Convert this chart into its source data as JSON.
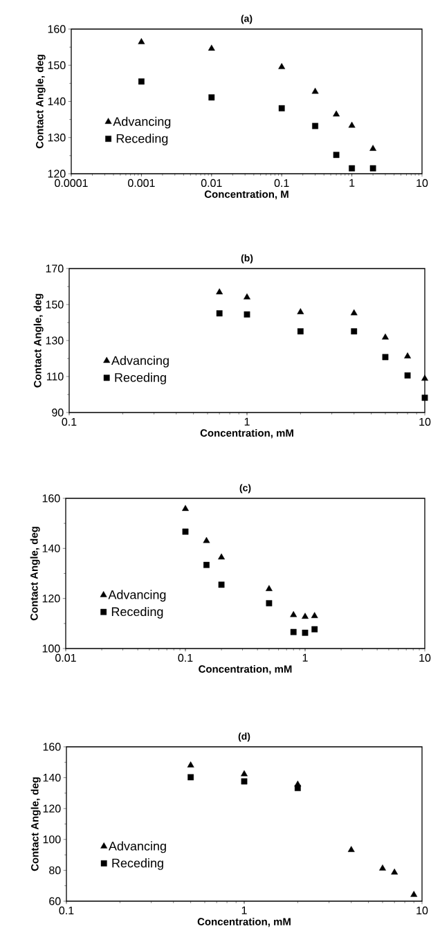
{
  "chart_data": [
    {
      "type": "scatter",
      "title": "(a)",
      "xlabel": "Concentration, M",
      "ylabel": "Contact Angle, deg",
      "log": "x",
      "legend": "left",
      "grid": false,
      "xlim": [
        0.0001,
        10
      ],
      "xticks": [
        0.0001,
        0.001,
        0.01,
        0.1,
        1,
        10
      ],
      "ylim": [
        120,
        160
      ],
      "yticks": [
        120,
        130,
        140,
        150,
        160
      ],
      "x": [
        0.001,
        0.01,
        0.1,
        0.3,
        0.6,
        1,
        2
      ],
      "series": [
        {
          "name": "Advancing",
          "color": "#000000",
          "marker": "triangle",
          "values": [
            156.4,
            154.6,
            149.5,
            142.7,
            136.4,
            133.3,
            126.9
          ]
        },
        {
          "name": "Receding",
          "color": "#000000",
          "marker": "square",
          "values": [
            145.5,
            141.1,
            138.1,
            133.2,
            125.2,
            121.5,
            121.5
          ]
        }
      ]
    },
    {
      "type": "scatter",
      "title": "(b)",
      "xlabel": "Concentration, mM",
      "ylabel": "Contact Angle, deg",
      "log": "x",
      "legend": "left",
      "grid": false,
      "xlim": [
        0.1,
        10
      ],
      "xticks": [
        0.1,
        1,
        10
      ],
      "ylim": [
        90,
        170
      ],
      "yticks": [
        90,
        110,
        130,
        150,
        170
      ],
      "x": [
        0.7,
        1,
        2,
        4,
        6,
        8,
        10
      ],
      "series": [
        {
          "name": "Advancing",
          "color": "#000000",
          "marker": "triangle",
          "values": [
            156.8,
            154.0,
            145.8,
            145.2,
            131.7,
            121.2,
            108.8
          ]
        },
        {
          "name": "Receding",
          "color": "#000000",
          "marker": "square",
          "values": [
            145.1,
            144.5,
            135.1,
            135.1,
            120.8,
            110.6,
            98.2
          ]
        }
      ]
    },
    {
      "type": "scatter",
      "title": "(c)",
      "xlabel": "Concentration, mM",
      "ylabel": "Contact Angle, deg",
      "log": "x",
      "legend": "left",
      "grid": false,
      "xlim": [
        0.01,
        10
      ],
      "xticks": [
        0.01,
        0.1,
        1,
        10
      ],
      "ylim": [
        100,
        160
      ],
      "yticks": [
        100,
        120,
        140,
        160
      ],
      "x": [
        0.1,
        0.15,
        0.2,
        0.5,
        0.8,
        1,
        1.2
      ],
      "series": [
        {
          "name": "Advancing",
          "color": "#000000",
          "marker": "triangle",
          "values": [
            155.8,
            143.0,
            136.4,
            123.8,
            113.4,
            112.7,
            113.0
          ]
        },
        {
          "name": "Receding",
          "color": "#000000",
          "marker": "square",
          "values": [
            146.7,
            133.4,
            125.5,
            118.1,
            106.6,
            106.3,
            107.7
          ]
        }
      ]
    },
    {
      "type": "scatter",
      "title": "(d)",
      "xlabel": "Concentration, mM",
      "ylabel": "Contact Angle, deg",
      "log": "x",
      "legend": "left",
      "grid": false,
      "xlim": [
        0.1,
        10
      ],
      "xticks": [
        0.1,
        1,
        10
      ],
      "ylim": [
        60,
        160
      ],
      "yticks": [
        60,
        80,
        100,
        120,
        140,
        160
      ],
      "x": [
        0.5,
        1,
        2,
        4,
        6,
        7,
        9
      ],
      "series": [
        {
          "name": "Advancing",
          "color": "#000000",
          "marker": "triangle",
          "values": [
            148.0,
            142.3,
            135.6,
            93.2,
            81.2,
            78.6,
            64.1
          ]
        },
        {
          "name": "Receding",
          "color": "#000000",
          "marker": "square",
          "values": [
            140.3,
            137.6,
            133.3,
            null,
            null,
            null,
            null
          ]
        }
      ]
    }
  ]
}
